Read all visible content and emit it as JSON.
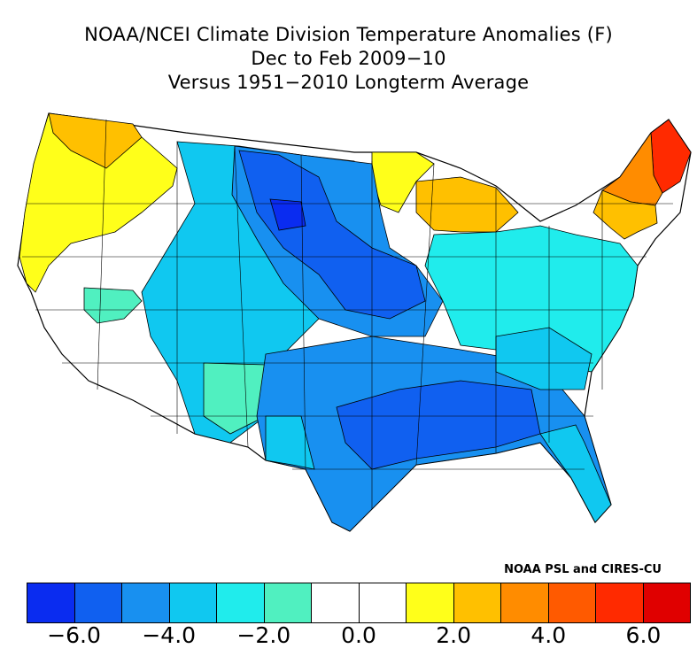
{
  "title": {
    "line1": "NOAA/NCEI Climate Division Temperature Anomalies (F)",
    "line2": "Dec to Feb 2009−10",
    "line3": "Versus 1951−2010 Longterm Average"
  },
  "credit": "NOAA PSL and CIRES-CU",
  "legend": {
    "colors": [
      "#0a2cf0",
      "#1060f0",
      "#1890f0",
      "#10c8f0",
      "#20ecec",
      "#50f0c0",
      "#ffffff",
      "#ffffff",
      "#ffff1a",
      "#ffc000",
      "#ff8c00",
      "#ff5a00",
      "#ff2a00",
      "#e00000"
    ],
    "tick_labels": [
      "−6.0",
      "−4.0",
      "−2.0",
      "0.0",
      "2.0",
      "4.0",
      "6.0"
    ]
  },
  "map": {
    "region": "Contiguous United States",
    "unit": "F",
    "anomaly_classes": [
      {
        "region": "Maine / northern New England",
        "color": "#ff2a00"
      },
      {
        "region": "Interior New England",
        "color": "#ff8c00"
      },
      {
        "region": "Southern New England / New York",
        "color": "#ffc000"
      },
      {
        "region": "Pacific Northwest interior",
        "color": "#ffc000"
      },
      {
        "region": "Pacific coast (WA/OR/N CA)",
        "color": "#ffff1a"
      },
      {
        "region": "Upper Great Lakes",
        "color": "#ffc000"
      },
      {
        "region": "Minnesota / Wisconsin north",
        "color": "#ffff1a"
      },
      {
        "region": "Great Basin / California",
        "color": "#ffffff"
      },
      {
        "region": "Rockies / Southwest",
        "color": "#10c8f0"
      },
      {
        "region": "Northern Plains",
        "color": "#1890f0"
      },
      {
        "region": "Central Plains core",
        "color": "#1060f0"
      },
      {
        "region": "Southern Plains / Texas",
        "color": "#1890f0"
      },
      {
        "region": "Deep South / Gulf Coast",
        "color": "#1890f0"
      },
      {
        "region": "Ohio Valley / Mid-Atlantic",
        "color": "#20ecec"
      },
      {
        "region": "Florida peninsula",
        "color": "#10c8f0"
      }
    ]
  }
}
